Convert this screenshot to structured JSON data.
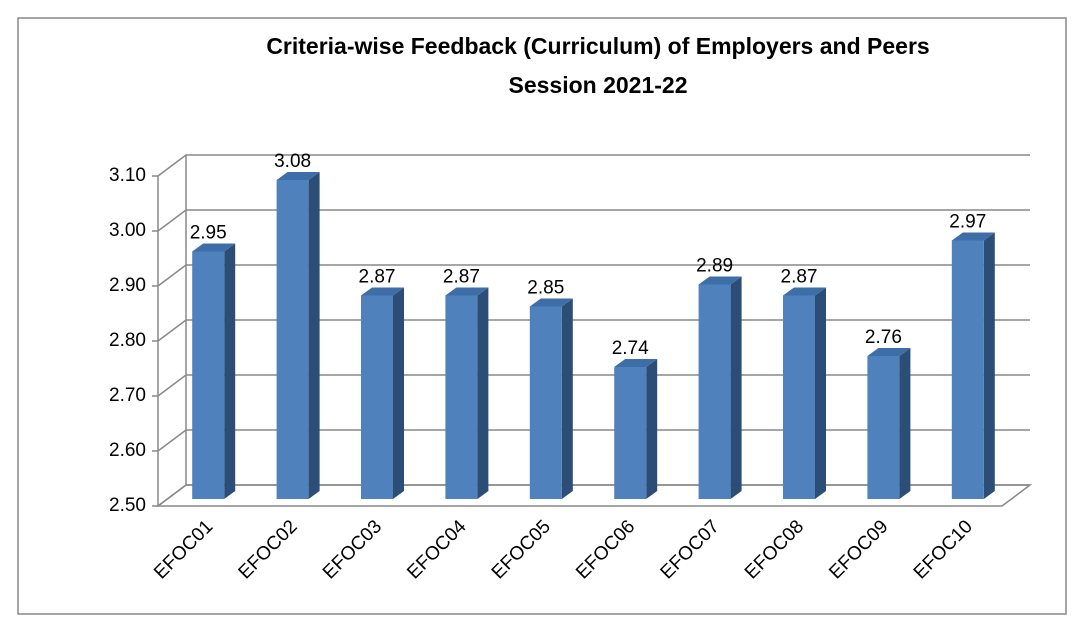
{
  "chart_data": {
    "type": "bar3d",
    "title": "Criteria-wise Feedback (Curriculum) of  Employers and Peers",
    "subtitle": "Session 2021-22",
    "categories": [
      "EFOC01",
      "EFOC02",
      "EFOC03",
      "EFOC04",
      "EFOC05",
      "EFOC06",
      "EFOC07",
      "EFOC08",
      "EFOC09",
      "EFOC10"
    ],
    "values": [
      2.95,
      3.08,
      2.87,
      2.87,
      2.85,
      2.74,
      2.89,
      2.87,
      2.76,
      2.97
    ],
    "color": "#4f81bd",
    "ylim": [
      2.5,
      3.1
    ],
    "yticks": [
      {
        "value": 2.5,
        "label": "2.50"
      },
      {
        "value": 2.6,
        "label": "2.60"
      },
      {
        "value": 2.7,
        "label": "2.70"
      },
      {
        "value": 2.8,
        "label": "2.80"
      },
      {
        "value": 2.9,
        "label": "2.90"
      },
      {
        "value": 3.0,
        "label": "3.00"
      },
      {
        "value": 3.1,
        "label": "3.10"
      }
    ],
    "grid": true
  }
}
